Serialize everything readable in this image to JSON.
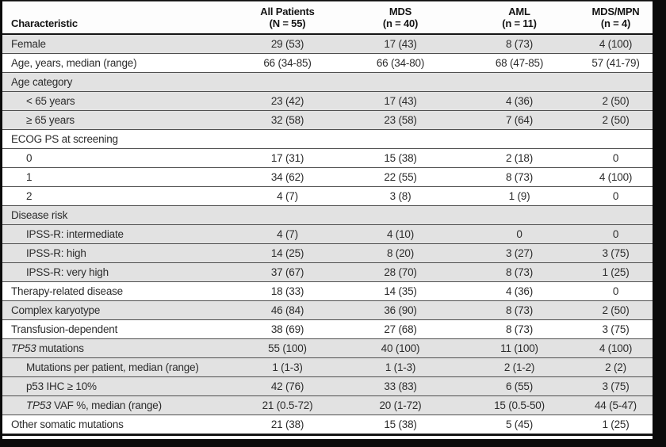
{
  "table": {
    "header": {
      "characteristic_label": "Characteristic",
      "columns": [
        {
          "name": "All Patients",
          "n": "(N = 55)"
        },
        {
          "name": "MDS",
          "n": "(n = 40)"
        },
        {
          "name": "AML",
          "n": "(n = 11)"
        },
        {
          "name": "MDS/MPN",
          "n": "(n = 4)"
        }
      ]
    },
    "colors": {
      "shaded_row": "#e2e2e2",
      "rule": "#4f4f4f",
      "heavy_rule": "#141414"
    },
    "rows": [
      {
        "label": [
          {
            "text": "Female"
          }
        ],
        "indent": 0,
        "shaded": true,
        "values": [
          "29 (53)",
          "17 (43)",
          "8 (73)",
          "4 (100)"
        ]
      },
      {
        "label": [
          {
            "text": "Age, years, median (range)"
          }
        ],
        "indent": 0,
        "shaded": false,
        "values": [
          "66 (34-85)",
          "66 (34-80)",
          "68 (47-85)",
          "57 (41-79)"
        ]
      },
      {
        "label": [
          {
            "text": "Age category"
          }
        ],
        "indent": 0,
        "shaded": true,
        "values": [
          "",
          "",
          "",
          ""
        ]
      },
      {
        "label": [
          {
            "text": "< 65 years"
          }
        ],
        "indent": 1,
        "shaded": true,
        "values": [
          "23 (42)",
          "17 (43)",
          "4 (36)",
          "2 (50)"
        ]
      },
      {
        "label": [
          {
            "text": "≥ 65 years"
          }
        ],
        "indent": 1,
        "shaded": true,
        "values": [
          "32 (58)",
          "23 (58)",
          "7 (64)",
          "2 (50)"
        ]
      },
      {
        "label": [
          {
            "text": "ECOG PS at screening"
          }
        ],
        "indent": 0,
        "shaded": false,
        "values": [
          "",
          "",
          "",
          ""
        ]
      },
      {
        "label": [
          {
            "text": "0"
          }
        ],
        "indent": 1,
        "shaded": false,
        "values": [
          "17 (31)",
          "15 (38)",
          "2 (18)",
          "0"
        ]
      },
      {
        "label": [
          {
            "text": "1"
          }
        ],
        "indent": 1,
        "shaded": false,
        "values": [
          "34 (62)",
          "22 (55)",
          "8 (73)",
          "4 (100)"
        ]
      },
      {
        "label": [
          {
            "text": "2"
          }
        ],
        "indent": 1,
        "shaded": false,
        "values": [
          "4 (7)",
          "3 (8)",
          "1 (9)",
          "0"
        ]
      },
      {
        "label": [
          {
            "text": "Disease risk"
          }
        ],
        "indent": 0,
        "shaded": true,
        "values": [
          "",
          "",
          "",
          ""
        ]
      },
      {
        "label": [
          {
            "text": "IPSS-R: intermediate"
          }
        ],
        "indent": 1,
        "shaded": true,
        "values": [
          "4 (7)",
          "4 (10)",
          "0",
          "0"
        ]
      },
      {
        "label": [
          {
            "text": "IPSS-R: high"
          }
        ],
        "indent": 1,
        "shaded": true,
        "values": [
          "14 (25)",
          "8 (20)",
          "3 (27)",
          "3 (75)"
        ]
      },
      {
        "label": [
          {
            "text": "IPSS-R: very high"
          }
        ],
        "indent": 1,
        "shaded": true,
        "values": [
          "37 (67)",
          "28 (70)",
          "8 (73)",
          "1 (25)"
        ]
      },
      {
        "label": [
          {
            "text": "Therapy-related disease"
          }
        ],
        "indent": 0,
        "shaded": false,
        "values": [
          "18 (33)",
          "14 (35)",
          "4 (36)",
          "0"
        ]
      },
      {
        "label": [
          {
            "text": "Complex karyotype"
          }
        ],
        "indent": 0,
        "shaded": true,
        "values": [
          "46 (84)",
          "36 (90)",
          "8 (73)",
          "2 (50)"
        ]
      },
      {
        "label": [
          {
            "text": "Transfusion-dependent"
          }
        ],
        "indent": 0,
        "shaded": false,
        "values": [
          "38 (69)",
          "27 (68)",
          "8 (73)",
          "3 (75)"
        ]
      },
      {
        "label": [
          {
            "text": "TP53",
            "italic": true
          },
          {
            "text": " mutations"
          }
        ],
        "indent": 0,
        "shaded": true,
        "values": [
          "55 (100)",
          "40 (100)",
          "11 (100)",
          "4 (100)"
        ]
      },
      {
        "label": [
          {
            "text": "Mutations per patient, median (range)"
          }
        ],
        "indent": 1,
        "shaded": true,
        "values": [
          "1 (1-3)",
          "1 (1-3)",
          "2 (1-2)",
          "2 (2)"
        ]
      },
      {
        "label": [
          {
            "text": "p53 IHC ≥ 10%"
          }
        ],
        "indent": 1,
        "shaded": true,
        "values": [
          "42 (76)",
          "33 (83)",
          "6 (55)",
          "3 (75)"
        ]
      },
      {
        "label": [
          {
            "text": "TP53",
            "italic": true
          },
          {
            "text": " VAF %, median (range)"
          }
        ],
        "indent": 1,
        "shaded": true,
        "values": [
          "21 (0.5-72)",
          "20 (1-72)",
          "15 (0.5-50)",
          "44 (5-47)"
        ]
      },
      {
        "label": [
          {
            "text": "Other somatic mutations"
          }
        ],
        "indent": 0,
        "shaded": false,
        "values": [
          "21 (38)",
          "15 (38)",
          "5 (45)",
          "1 (25)"
        ]
      }
    ]
  }
}
